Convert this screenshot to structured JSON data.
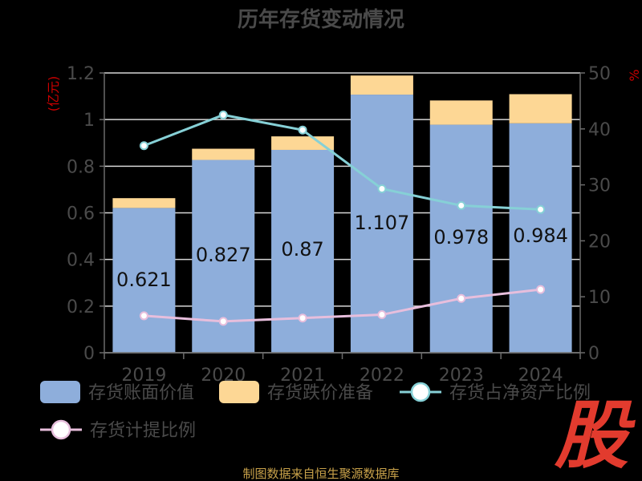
{
  "chart_data": {
    "type": "bar",
    "title": "历年存货变动情况",
    "categories": [
      "2019",
      "2020",
      "2021",
      "2022",
      "2023",
      "2024"
    ],
    "left_axis": {
      "unit": "(亿元)",
      "ticks": [
        "0",
        "0.2",
        "0.4",
        "0.6",
        "0.8",
        "1",
        "1.2"
      ],
      "range": [
        0,
        1.2
      ]
    },
    "right_axis": {
      "unit": "%",
      "ticks": [
        "0",
        "10",
        "20",
        "30",
        "40",
        "50"
      ],
      "range": [
        0,
        50
      ]
    },
    "series": [
      {
        "name": "存货账面价值",
        "type": "bar",
        "stack": "inv",
        "color": "#8eaedb",
        "values": [
          0.621,
          0.827,
          0.87,
          1.107,
          0.978,
          0.984
        ],
        "labels": [
          "0.621",
          "0.827",
          "0.87",
          "1.107",
          "0.978",
          "0.984"
        ]
      },
      {
        "name": "存货跌价准备",
        "type": "bar",
        "stack": "inv",
        "color": "#fdd795",
        "values": [
          0.042,
          0.048,
          0.058,
          0.082,
          0.104,
          0.125
        ]
      },
      {
        "name": "存货占净资产比例",
        "type": "line",
        "axis": "right",
        "color": "#86d0d6",
        "values": [
          37.0,
          42.5,
          39.8,
          29.3,
          26.3,
          25.6
        ]
      },
      {
        "name": "存货计提比例",
        "type": "line",
        "axis": "right",
        "color": "#e7bedc",
        "values": [
          6.6,
          5.6,
          6.2,
          6.8,
          9.7,
          11.3
        ]
      }
    ],
    "grid": true,
    "legend_position": "bottom"
  },
  "footer": {
    "source": "制图数据来自恒生聚源数据库"
  },
  "logo": {
    "text": "股"
  }
}
